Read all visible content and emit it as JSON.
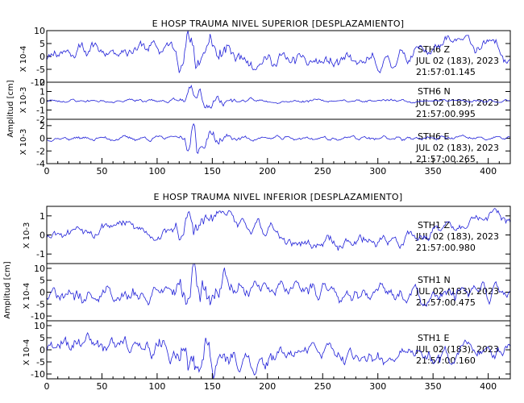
{
  "chart_data": [
    {
      "type": "line",
      "title": "E HOSP TRAUMA NIVEL SUPERIOR [DESPLAZAMIENTO]",
      "ylabel": "Amplitud [cm]",
      "xlim": [
        0,
        420
      ],
      "xticks": [
        0,
        50,
        100,
        150,
        200,
        250,
        300,
        350,
        400
      ],
      "x_step": 1,
      "panels": [
        {
          "scale_label": "X 10-4",
          "ylim": [
            -10,
            10
          ],
          "yticks": [
            -10,
            -5,
            0,
            5,
            10
          ],
          "station": "STH6  Z",
          "date": "JUL 02 (183), 2023",
          "time": "21:57:01.145",
          "seed": 11,
          "amp": 3.2,
          "smooth": 3,
          "offset": 0.5,
          "drift": [
            [
              0,
              1.5
            ],
            [
              80,
              3
            ],
            [
              135,
              2
            ],
            [
              200,
              -2
            ],
            [
              300,
              -4
            ],
            [
              330,
              1
            ],
            [
              380,
              5
            ],
            [
              420,
              1
            ]
          ],
          "bursts": [
            [
              140,
              18,
              2.2
            ]
          ]
        },
        {
          "scale_label": "X 10-3",
          "ylim": [
            -2,
            2
          ],
          "yticks": [
            -2,
            -1,
            0,
            1,
            2
          ],
          "station": "STH6  N",
          "date": "JUL 02 (183), 2023",
          "time": "21:57:00.995",
          "seed": 23,
          "amp": 0.18,
          "smooth": 2,
          "offset": 0,
          "drift": [
            [
              0,
              0
            ],
            [
              420,
              0
            ]
          ],
          "bursts": [
            [
              135,
              12,
              6
            ],
            [
              150,
              20,
              2
            ]
          ]
        },
        {
          "scale_label": "X 10-3",
          "ylim": [
            -4,
            3
          ],
          "yticks": [
            -4,
            -2,
            0,
            2
          ],
          "station": "STH6  E",
          "date": "JUL 02 (183), 2023",
          "time": "21:57:00.265",
          "seed": 37,
          "amp": 0.35,
          "smooth": 2,
          "offset": 0,
          "drift": [
            [
              0,
              0
            ],
            [
              420,
              0
            ]
          ],
          "bursts": [
            [
              135,
              10,
              6
            ],
            [
              150,
              18,
              2
            ]
          ]
        }
      ]
    },
    {
      "type": "line",
      "title": "E HOSP TRAUMA NIVEL INFERIOR [DESPLAZAMIENTO]",
      "ylabel": "Amplitud [cm]",
      "xlim": [
        0,
        420
      ],
      "xticks": [
        0,
        50,
        100,
        150,
        200,
        250,
        300,
        350,
        400
      ],
      "x_step": 1,
      "panels": [
        {
          "scale_label": "X 10-3",
          "ylim": [
            -1.5,
            1.5
          ],
          "yticks": [
            -1,
            0,
            1
          ],
          "station": "STH1  Z",
          "date": "JUL 02 (183), 2023",
          "time": "21:57:00.980",
          "seed": 53,
          "amp": 0.38,
          "smooth": 3,
          "offset": 0,
          "drift": [
            [
              0,
              0.2
            ],
            [
              60,
              0.6
            ],
            [
              100,
              0.1
            ],
            [
              140,
              0.4
            ],
            [
              160,
              1.1
            ],
            [
              200,
              0.1
            ],
            [
              230,
              -0.5
            ],
            [
              300,
              -0.3
            ],
            [
              360,
              0.2
            ],
            [
              405,
              1.0
            ],
            [
              420,
              0.7
            ]
          ],
          "bursts": [
            [
              135,
              15,
              1.8
            ]
          ]
        },
        {
          "scale_label": "X 10-4",
          "ylim": [
            -12,
            12
          ],
          "yticks": [
            -10,
            -5,
            0,
            5,
            10
          ],
          "station": "STH1  N",
          "date": "JUL 02 (183), 2023",
          "time": "21:57:00.475",
          "seed": 71,
          "amp": 3.6,
          "smooth": 2,
          "offset": 0,
          "drift": [
            [
              0,
              -2
            ],
            [
              100,
              0
            ],
            [
              160,
              1
            ],
            [
              220,
              2
            ],
            [
              280,
              0
            ],
            [
              350,
              -2
            ],
            [
              420,
              1
            ]
          ],
          "bursts": [
            [
              140,
              20,
              1.6
            ]
          ]
        },
        {
          "scale_label": "X 10-4",
          "ylim": [
            -12,
            12
          ],
          "yticks": [
            -10,
            -5,
            0,
            5,
            10
          ],
          "station": "STH1  E",
          "date": "JUL 02 (183), 2023",
          "time": "21:57:00.160",
          "seed": 89,
          "amp": 3.8,
          "smooth": 2,
          "offset": 0,
          "drift": [
            [
              0,
              0
            ],
            [
              40,
              4
            ],
            [
              100,
              0
            ],
            [
              190,
              -6
            ],
            [
              240,
              0
            ],
            [
              300,
              -3
            ],
            [
              380,
              -1
            ],
            [
              420,
              0
            ]
          ],
          "bursts": [
            [
              135,
              20,
              1.4
            ]
          ]
        }
      ]
    }
  ]
}
